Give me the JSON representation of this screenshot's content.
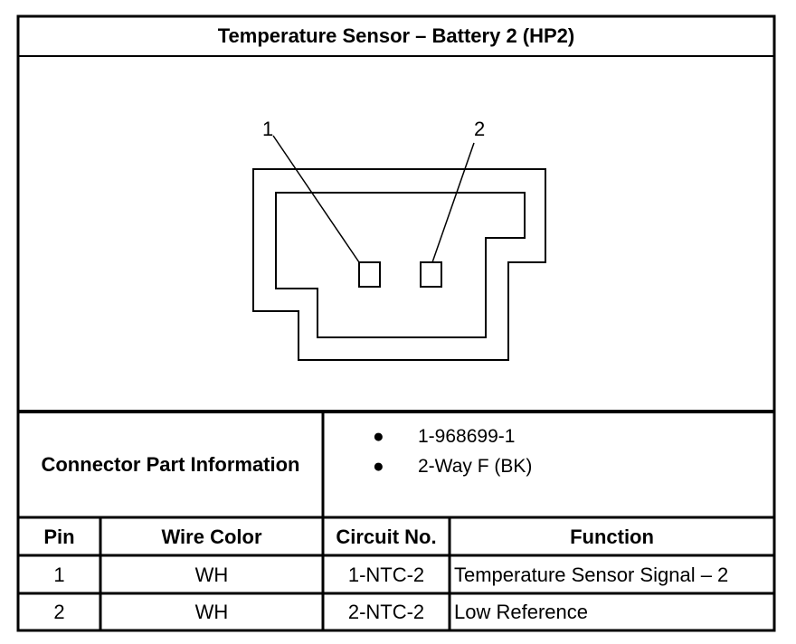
{
  "title": "Temperature Sensor – Battery 2 (HP2)",
  "diagram": {
    "pin_labels": [
      "1",
      "2"
    ]
  },
  "connector_info": {
    "label": "Connector Part Information",
    "items": [
      "1-968699-1",
      "2-Way F (BK)"
    ]
  },
  "table": {
    "headers": [
      "Pin",
      "Wire Color",
      "Circuit No.",
      "Function"
    ],
    "rows": [
      [
        "1",
        "WH",
        "1-NTC-2",
        "Temperature Sensor Signal – 2"
      ],
      [
        "2",
        "WH",
        "2-NTC-2",
        "Low Reference"
      ]
    ]
  }
}
